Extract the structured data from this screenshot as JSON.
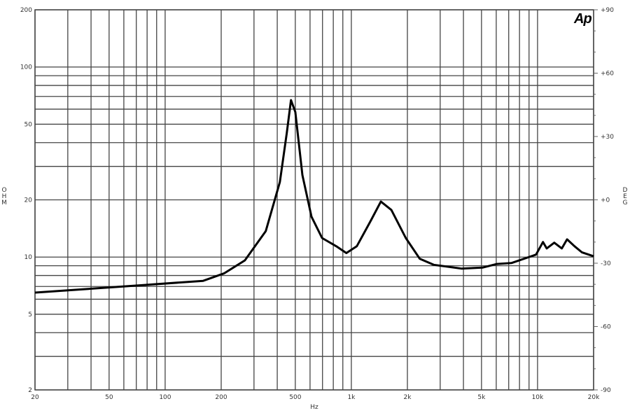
{
  "chart_data": {
    "type": "line",
    "title": "",
    "logo": "Ap",
    "xlabel": "Hz",
    "ylabel": "OHM",
    "y2label": "DEG",
    "xscale": "log",
    "yscale": "log",
    "xlim": [
      20,
      20000
    ],
    "ylim": [
      2,
      200
    ],
    "y2lim": [
      -90,
      90
    ],
    "grid": true,
    "x_tick_labels": [
      {
        "v": 20,
        "t": "20"
      },
      {
        "v": 50,
        "t": "50"
      },
      {
        "v": 100,
        "t": "100"
      },
      {
        "v": 200,
        "t": "200"
      },
      {
        "v": 500,
        "t": "500"
      },
      {
        "v": 1000,
        "t": "1k"
      },
      {
        "v": 2000,
        "t": "2k"
      },
      {
        "v": 5000,
        "t": "5k"
      },
      {
        "v": 10000,
        "t": "10k"
      },
      {
        "v": 20000,
        "t": "20k"
      }
    ],
    "y_tick_labels": [
      {
        "v": 200,
        "t": "200"
      },
      {
        "v": 100,
        "t": "100"
      },
      {
        "v": 50,
        "t": "50"
      },
      {
        "v": 20,
        "t": "20"
      },
      {
        "v": 10,
        "t": "10"
      },
      {
        "v": 5,
        "t": "5"
      },
      {
        "v": 2,
        "t": "2"
      }
    ],
    "y2_tick_labels": [
      {
        "v": 90,
        "t": "+90"
      },
      {
        "v": 60,
        "t": "+60"
      },
      {
        "v": 30,
        "t": "+30"
      },
      {
        "v": 0,
        "t": "+0"
      },
      {
        "v": -30,
        "t": "-30"
      },
      {
        "v": -60,
        "t": "-60"
      },
      {
        "v": -90,
        "t": "-90"
      }
    ],
    "x_grid": [
      20,
      30,
      40,
      50,
      60,
      70,
      80,
      90,
      100,
      200,
      300,
      400,
      500,
      600,
      700,
      800,
      900,
      1000,
      2000,
      3000,
      4000,
      5000,
      6000,
      7000,
      8000,
      9000,
      10000,
      20000
    ],
    "y_grid": [
      2,
      3,
      4,
      5,
      6,
      7,
      8,
      9,
      10,
      20,
      30,
      40,
      50,
      60,
      70,
      80,
      90,
      100,
      200
    ],
    "series": [
      {
        "color": "#000000",
        "x": [
          20,
          73,
          160,
          207,
          268,
          347,
          413,
          450,
          474,
          500,
          546,
          611,
          696,
          830,
          940,
          1070,
          1270,
          1440,
          1640,
          1960,
          2330,
          2770,
          3900,
          5060,
          6050,
          7230,
          9820,
          10700,
          11200,
          12300,
          13500,
          14400,
          15800,
          17300,
          20000
        ],
        "y": [
          6.5,
          7.1,
          7.5,
          8.2,
          9.6,
          13.7,
          24.8,
          45,
          67,
          58,
          27,
          16.3,
          12.6,
          11.4,
          10.5,
          11.4,
          15.5,
          19.6,
          17.7,
          12.6,
          9.8,
          9.1,
          8.7,
          8.8,
          9.2,
          9.3,
          10.3,
          12.0,
          11.1,
          11.9,
          11.1,
          12.4,
          11.4,
          10.6,
          10.1
        ]
      }
    ]
  }
}
